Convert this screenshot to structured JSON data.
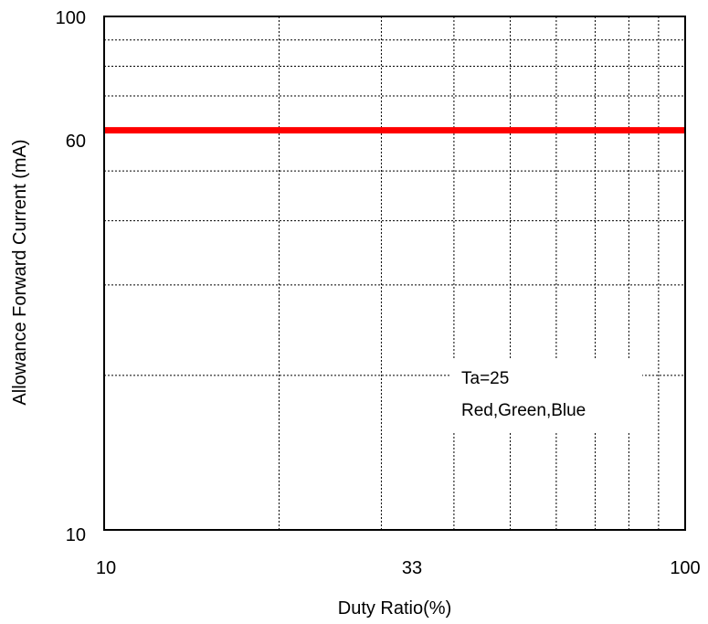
{
  "chart_data": {
    "type": "line",
    "title": "",
    "xlabel": "Duty Ratio(%)",
    "ylabel": "Allowance Forward Current (mA)",
    "xscale": "log",
    "yscale": "log",
    "xlim": [
      10,
      100
    ],
    "ylim": [
      10,
      100
    ],
    "x_tick_labels": [
      {
        "value": 10,
        "label": "10"
      },
      {
        "value": 33,
        "label": "33"
      },
      {
        "value": 100,
        "label": "100"
      }
    ],
    "y_tick_labels": [
      {
        "value": 10,
        "label": "10"
      },
      {
        "value": 60,
        "label": "60"
      },
      {
        "value": 100,
        "label": "100"
      }
    ],
    "x_gridlines": [
      20,
      30,
      40,
      50,
      60,
      70,
      80,
      90
    ],
    "y_gridlines": [
      20,
      30,
      40,
      50,
      60,
      70,
      80,
      90
    ],
    "grid": true,
    "grid_style": "dotted",
    "series": [
      {
        "color": "#ff0000",
        "x": [
          10,
          100
        ],
        "y": [
          60,
          60
        ]
      }
    ],
    "annotations": [
      "Ta=25",
      "Red,Green,Blue"
    ]
  }
}
